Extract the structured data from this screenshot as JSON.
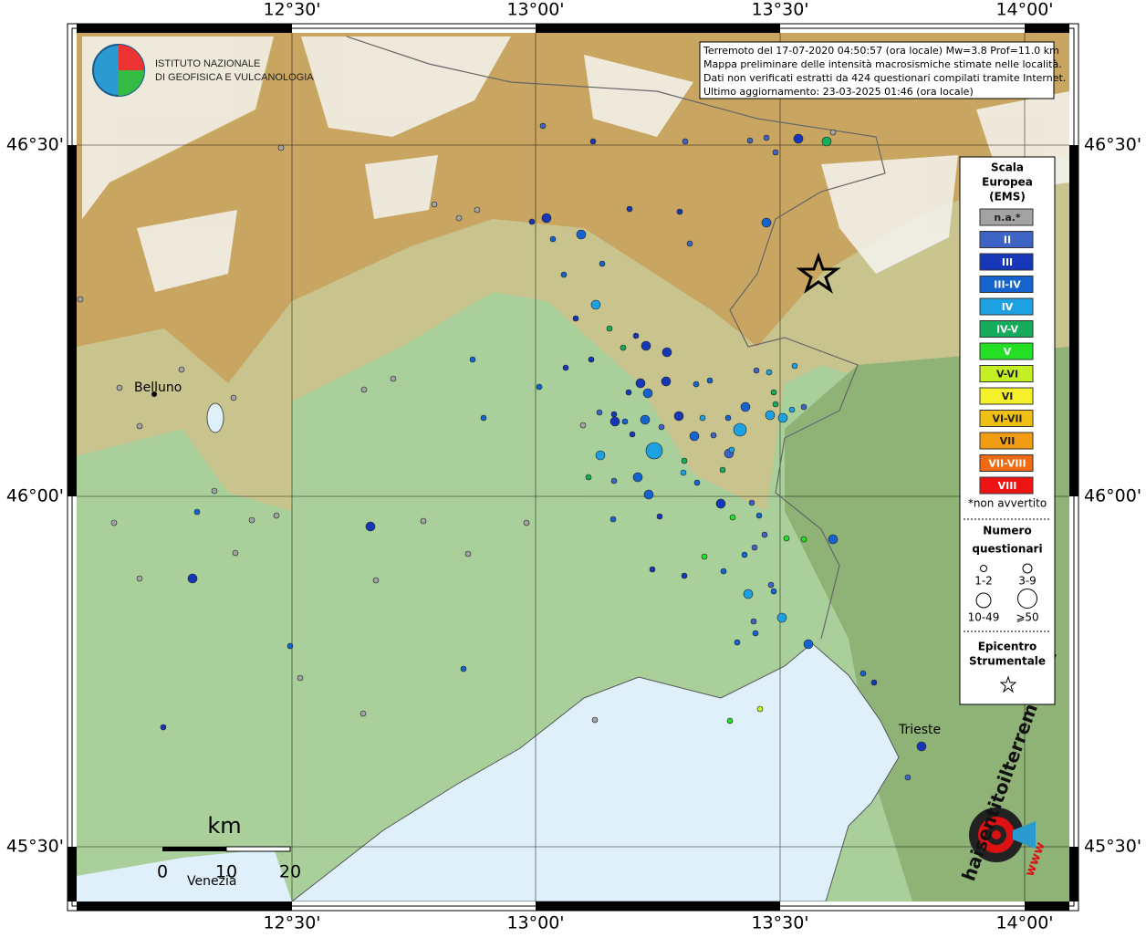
{
  "info": {
    "lines": [
      "Terremoto del 17-07-2020 04:50:57 (ora locale) Mw=3.8 Prof=11.0 km",
      "Mappa preliminare delle intensità macrosismiche stimate nelle località.",
      "Dati non verificati estratti da 424 questionari compilati tramite Internet.",
      "Ultimo aggiornamento: 23-03-2025 01:46 (ora locale)"
    ]
  },
  "logo": {
    "lines": [
      "ISTITUTO NAZIONALE",
      "DI GEOFISICA E VULCANOLOGIA"
    ]
  },
  "axes": {
    "longitude": [
      "12°30'",
      "13°00'",
      "13°30'",
      "14°00'"
    ],
    "latitude": [
      "46°30'",
      "46°00'",
      "45°30'"
    ]
  },
  "places": {
    "belluno": "Belluno",
    "trieste": "Trieste",
    "venezia": "Venezia"
  },
  "scale_bar": {
    "unit": "km",
    "labels": [
      "0",
      "10",
      "20"
    ]
  },
  "legend": {
    "title": [
      "Scala",
      "Europea",
      "(EMS)"
    ],
    "entries": [
      {
        "label": "n.a.*",
        "color": "#a3a3a3"
      },
      {
        "label": "II",
        "color": "#3f63c4"
      },
      {
        "label": "III",
        "color": "#1537b8"
      },
      {
        "label": "III-IV",
        "color": "#1463cf"
      },
      {
        "label": "IV",
        "color": "#1ea1e3"
      },
      {
        "label": "IV-V",
        "color": "#14ac5a"
      },
      {
        "label": "V",
        "color": "#24e024"
      },
      {
        "label": "V-VI",
        "color": "#c3ef25"
      },
      {
        "label": "VI",
        "color": "#f4f02a"
      },
      {
        "label": "VI-VII",
        "color": "#f0bf14"
      },
      {
        "label": "VII",
        "color": "#f09d14"
      },
      {
        "label": "VII-VIII",
        "color": "#ef6a12"
      },
      {
        "label": "VIII",
        "color": "#ef1414"
      }
    ],
    "note": "*non avvertito",
    "size_title": [
      "Numero",
      "questionari"
    ],
    "sizes": [
      "1-2",
      "3-9",
      "10-49",
      "⩾50"
    ],
    "epicenter_title": [
      "Epicentro",
      "Strumentale"
    ]
  },
  "watermark": {
    "text": "haisentitoilterremoto.it",
    "www": "www"
  }
}
